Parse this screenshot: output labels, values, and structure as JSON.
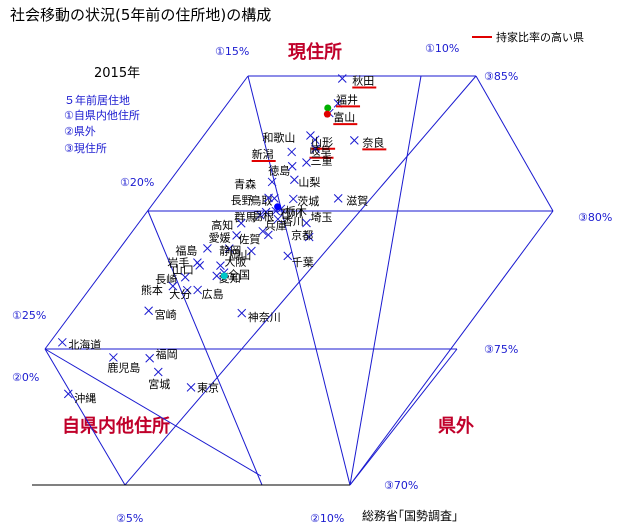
{
  "header": {
    "title": "社会移動の状況(5年前の住所地)の構成",
    "year": "2015年",
    "legend_lines": [
      "５年前居住地",
      "①自県内他住所",
      "②県外",
      "③現住所"
    ],
    "red_legend": "持家比率の高い県",
    "red_color": "#e00000",
    "source": "総務省｢国勢調査｣"
  },
  "corners": {
    "current": "現住所",
    "within": "自県内他住所",
    "outside": "県外"
  },
  "accent": "#1a1ad0",
  "corner_color": "#c0002a",
  "ticks": {
    "a15": "①15%",
    "a10": "①10%",
    "a20": "①20%",
    "a25": "①25%",
    "b0": "②0%",
    "b5": "②5%",
    "b10": "②10%",
    "c85": "③85%",
    "c80": "③80%",
    "c75": "③75%",
    "c70": "③70%"
  },
  "chart_data": {
    "type": "scatter",
    "title": "社会移動の状況(5年前の住所地)の構成",
    "subtitle": "2015年",
    "components": [
      "①自県内他住所",
      "②県外",
      "③現住所"
    ],
    "ranges": {
      "within_pct": [
        10,
        25
      ],
      "outside_pct": [
        0,
        10
      ],
      "current_pct": [
        70,
        85
      ]
    },
    "points": [
      {
        "name": "秋田",
        "within": 12.36,
        "outside": 2.57,
        "current": 85.07,
        "highlight": true
      },
      {
        "name": "福井",
        "within": 12.67,
        "outside": 3.18,
        "current": 84.15,
        "highlight": true
      },
      {
        "name": "富山",
        "within": 12.98,
        "outside": 3.23,
        "current": 83.79,
        "highlight": true
      },
      {
        "name": "和歌山",
        "within": 13.66,
        "outside": 3.38,
        "current": 82.96,
        "highlight": false
      },
      {
        "name": "山形",
        "within": 13.57,
        "outside": 3.63,
        "current": 82.8,
        "highlight": true
      },
      {
        "name": "奈良",
        "within": 12.53,
        "outside": 4.69,
        "current": 82.78,
        "highlight": true
      },
      {
        "name": "新潟",
        "within": 14.29,
        "outside": 3.36,
        "current": 82.35,
        "highlight": true
      },
      {
        "name": "岐阜",
        "within": 13.63,
        "outside": 3.9,
        "current": 82.47,
        "highlight": true
      },
      {
        "name": "徳島",
        "within": 14.39,
        "outside": 3.79,
        "current": 81.82,
        "highlight": false
      },
      {
        "name": "三重",
        "within": 13.98,
        "outside": 4.06,
        "current": 81.96,
        "highlight": false
      },
      {
        "name": "青森",
        "within": 15.05,
        "outside": 3.71,
        "current": 81.24,
        "highlight": false
      },
      {
        "name": "山梨",
        "within": 14.44,
        "outside": 4.24,
        "current": 81.32,
        "highlight": false
      },
      {
        "name": "鳥取",
        "within": 15.12,
        "outside": 4.25,
        "current": 80.63,
        "highlight": false
      },
      {
        "name": "長野",
        "within": 15.27,
        "outside": 4.08,
        "current": 80.65,
        "highlight": false
      },
      {
        "name": "茨城",
        "within": 14.62,
        "outside": 4.77,
        "current": 80.61,
        "highlight": false
      },
      {
        "name": "滋賀",
        "within": 13.42,
        "outside": 5.95,
        "current": 80.63,
        "highlight": false
      },
      {
        "name": "栃木",
        "within": 15.03,
        "outside": 4.73,
        "current": 80.24,
        "highlight": false
      },
      {
        "name": "群馬",
        "within": 15.63,
        "outside": 4.36,
        "current": 80.01,
        "highlight": false
      },
      {
        "name": "石川",
        "within": 15.18,
        "outside": 4.66,
        "current": 80.16,
        "highlight": false
      },
      {
        "name": "島根",
        "within": 15.45,
        "outside": 4.43,
        "current": 80.12,
        "highlight": false
      },
      {
        "name": "高知",
        "within": 16.2,
        "outside": 4.09,
        "current": 79.71,
        "highlight": false
      },
      {
        "name": "香川",
        "within": 15.19,
        "outside": 4.95,
        "current": 79.86,
        "highlight": false
      },
      {
        "name": "埼玉",
        "within": 14.46,
        "outside": 5.82,
        "current": 79.72,
        "highlight": false
      },
      {
        "name": "愛媛",
        "within": 16.42,
        "outside": 4.32,
        "current": 79.26,
        "highlight": false
      },
      {
        "name": "兵庫",
        "within": 15.69,
        "outside": 4.9,
        "current": 79.41,
        "highlight": false
      },
      {
        "name": "佐賀",
        "within": 15.57,
        "outside": 5.15,
        "current": 79.28,
        "highlight": false
      },
      {
        "name": "京都",
        "within": 14.5,
        "outside": 6.3,
        "current": 79.2,
        "highlight": false
      },
      {
        "name": "福島",
        "within": 17.3,
        "outside": 3.92,
        "current": 78.78,
        "highlight": false
      },
      {
        "name": "静岡",
        "within": 16.72,
        "outside": 4.51,
        "current": 78.77,
        "highlight": false
      },
      {
        "name": "岡山",
        "within": 16.15,
        "outside": 5.17,
        "current": 78.68,
        "highlight": false
      },
      {
        "name": "千葉",
        "within": 15.22,
        "outside": 6.28,
        "current": 78.5,
        "highlight": false
      },
      {
        "name": "岩手",
        "within": 17.68,
        "outside": 4.07,
        "current": 78.25,
        "highlight": false
      },
      {
        "name": "大阪",
        "within": 17.09,
        "outside": 4.77,
        "current": 78.14,
        "highlight": false
      },
      {
        "name": "山口",
        "within": 17.64,
        "outside": 4.21,
        "current": 78.15,
        "highlight": false
      },
      {
        "name": "全国",
        "within": 17.05,
        "outside": 5.07,
        "current": 77.88,
        "highlight": false
      },
      {
        "name": "愛知",
        "within": 17.27,
        "outside": 4.97,
        "current": 77.76,
        "highlight": false
      },
      {
        "name": "長崎",
        "within": 18.12,
        "outside": 4.17,
        "current": 77.71,
        "highlight": false
      },
      {
        "name": "熊本",
        "within": 18.52,
        "outside": 4.1,
        "current": 77.38,
        "highlight": false
      },
      {
        "name": "大分",
        "within": 18.17,
        "outside": 4.6,
        "current": 77.23,
        "highlight": false
      },
      {
        "name": "広島",
        "within": 17.89,
        "outside": 4.87,
        "current": 77.24,
        "highlight": false
      },
      {
        "name": "神奈川",
        "within": 16.9,
        "outside": 6.72,
        "current": 76.38,
        "highlight": false
      },
      {
        "name": "宮崎",
        "within": 19.36,
        "outside": 4.17,
        "current": 76.47,
        "highlight": false
      },
      {
        "name": "北海道",
        "within": 21.91,
        "outside": 2.79,
        "current": 75.3,
        "highlight": false
      },
      {
        "name": "鹿児島",
        "within": 20.67,
        "outside": 4.59,
        "current": 74.74,
        "highlight": false
      },
      {
        "name": "福岡",
        "within": 19.71,
        "outside": 5.58,
        "current": 74.71,
        "highlight": false
      },
      {
        "name": "宮城",
        "within": 19.59,
        "outside": 6.21,
        "current": 74.2,
        "highlight": false
      },
      {
        "name": "沖縄",
        "within": 22.16,
        "outside": 4.45,
        "current": 73.39,
        "highlight": false
      },
      {
        "name": "東京",
        "within": 18.84,
        "outside": 7.53,
        "current": 73.63,
        "highlight": false
      }
    ],
    "markers": [
      {
        "name": "Tokyo-area-green",
        "within": 12.98,
        "outside": 3.04,
        "current": 83.98,
        "color": "#00b000"
      },
      {
        "name": "red-dot",
        "within": 13.04,
        "outside": 3.21,
        "current": 83.75,
        "color": "#e00000"
      },
      {
        "name": "blue-dot",
        "within": 15.1,
        "outside": 4.58,
        "current": 80.32,
        "color": "#0000ff"
      },
      {
        "name": "cyan-dot",
        "within": 17.07,
        "outside": 5.17,
        "current": 77.76,
        "color": "#00c8c8"
      }
    ]
  }
}
